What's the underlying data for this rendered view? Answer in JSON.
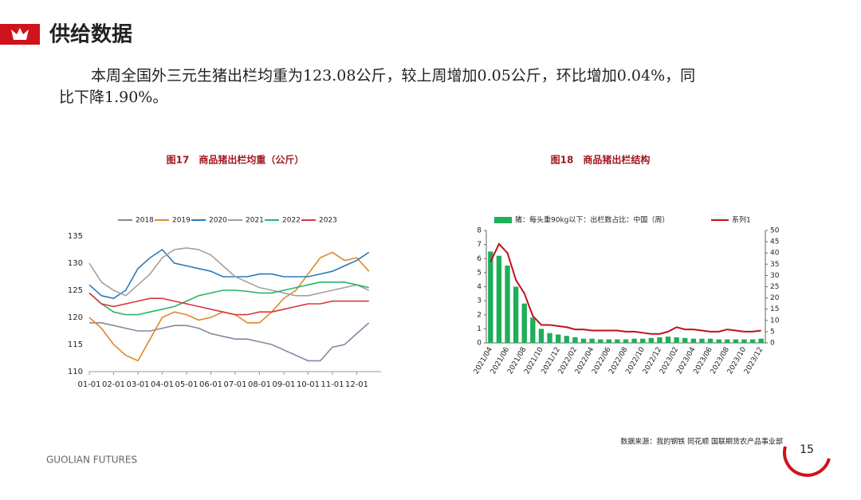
{
  "header": {
    "title": "供给数据"
  },
  "paragraph": [
    "本周全国外三元生猪出栏均重为123.08公斤，较上周增加0.05公斤，环比增加0.04%，同",
    "比下降1.90%。"
  ],
  "chart_data": [
    {
      "type": "line",
      "title": "图17　商品猪出栏均重（公斤）",
      "categories": [
        "01-01",
        null,
        "02-01",
        null,
        "03-01",
        null,
        "04-01",
        null,
        "05-01",
        null,
        "06-01",
        null,
        "07-01",
        null,
        "08-01",
        null,
        "09-01",
        null,
        "10-01",
        null,
        "11-01",
        null,
        "12-01",
        null
      ],
      "ylim": [
        110,
        135
      ],
      "yticks": [
        110,
        115,
        120,
        125,
        130,
        135
      ],
      "series": [
        {
          "name": "2018",
          "color": "#8a86a0",
          "values": [
            119,
            119,
            118.5,
            118,
            117.5,
            117.5,
            118,
            118.5,
            118.5,
            118,
            117,
            116.5,
            116,
            116,
            115.5,
            115,
            114,
            113,
            112,
            112,
            114.5,
            115,
            117,
            119
          ]
        },
        {
          "name": "2019",
          "color": "#e0882b",
          "values": [
            120,
            118,
            115,
            113,
            112,
            116,
            120,
            121,
            120.5,
            119.5,
            120,
            121,
            120.5,
            119,
            119,
            121,
            123.5,
            125,
            128,
            131,
            132,
            130.5,
            131,
            128.5
          ]
        },
        {
          "name": "2020",
          "color": "#2a7ab8",
          "values": [
            126,
            124,
            123.5,
            125,
            129,
            131,
            132.5,
            130,
            129.5,
            129,
            128.5,
            127.5,
            127.5,
            127.5,
            128,
            128,
            127.5,
            127.5,
            127.5,
            128,
            128.5,
            129.5,
            130.5,
            132
          ]
        },
        {
          "name": "2021",
          "color": "#a0a0a0",
          "values": [
            130,
            126.5,
            125,
            124,
            126,
            128,
            131,
            132.5,
            132.8,
            132.5,
            131.5,
            129.5,
            127.5,
            126.5,
            125.5,
            125,
            124.5,
            124,
            124,
            124.5,
            125,
            125.5,
            126,
            125
          ]
        },
        {
          "name": "2022",
          "color": "#2ab36a",
          "values": [
            124.5,
            122.5,
            121,
            120.5,
            120.5,
            121,
            121.5,
            122,
            123,
            124,
            124.5,
            125,
            125,
            124.8,
            124.5,
            124.5,
            125,
            125.5,
            126,
            126.5,
            126.5,
            126.5,
            126,
            125.5
          ]
        },
        {
          "name": "2023",
          "color": "#d9363e",
          "values": [
            124.5,
            122.5,
            122,
            122.5,
            123,
            123.5,
            123.5,
            123,
            122.5,
            122,
            121.5,
            121,
            120.5,
            120.5,
            121,
            121,
            121.5,
            122,
            122.5,
            122.5,
            123,
            123,
            123,
            123
          ]
        }
      ]
    },
    {
      "type": "combo",
      "title": "图18　商品猪出栏结构",
      "categories": [
        "2021/04",
        null,
        "2021/06",
        null,
        "2021/08",
        null,
        "2021/10",
        null,
        "2021/12",
        null,
        "2022/02",
        null,
        "2022/04",
        null,
        "2022/06",
        null,
        "2022/08",
        null,
        "2022/10",
        null,
        "2022/12",
        null,
        "2023/02",
        null,
        "2023/04",
        null,
        "2023/06",
        null,
        "2023/08",
        null,
        "2023/10",
        null,
        "2023/12"
      ],
      "ylim": [
        0,
        8
      ],
      "yticks": [
        0,
        1,
        2,
        3,
        4,
        5,
        6,
        7,
        8
      ],
      "y2lim": [
        0,
        50
      ],
      "y2ticks": [
        0,
        5,
        10,
        15,
        20,
        25,
        30,
        35,
        40,
        45,
        50
      ],
      "series": [
        {
          "name": "猪：每头重90kg以下：出栏数占比：中国（周）",
          "type": "bar",
          "color": "#1fae5a",
          "values": [
            6.5,
            6.2,
            5.5,
            4.0,
            2.8,
            1.8,
            1.0,
            0.7,
            0.6,
            0.5,
            0.4,
            0.3,
            0.3,
            0.25,
            0.25,
            0.25,
            0.25,
            0.3,
            0.3,
            0.35,
            0.4,
            0.45,
            0.4,
            0.35,
            0.3,
            0.3,
            0.3,
            0.25,
            0.25,
            0.25,
            0.25,
            0.25,
            0.3
          ]
        },
        {
          "name": "系列1",
          "type": "line",
          "axis": "y2",
          "color": "#c0121e",
          "values": [
            36,
            44,
            40,
            28,
            22,
            12,
            8,
            8,
            7.5,
            7,
            6,
            6,
            5.5,
            5.5,
            5.5,
            5.5,
            5,
            5,
            4.5,
            4,
            4,
            5,
            7,
            6,
            6,
            5.5,
            5,
            5,
            6,
            5.5,
            5,
            5,
            5.5
          ]
        }
      ]
    }
  ],
  "footer": {
    "source": "数据来源：我的钢铁 同花顺 国联期货农产品事业部",
    "page": "15",
    "brand": "GUOLIAN FUTURES"
  }
}
